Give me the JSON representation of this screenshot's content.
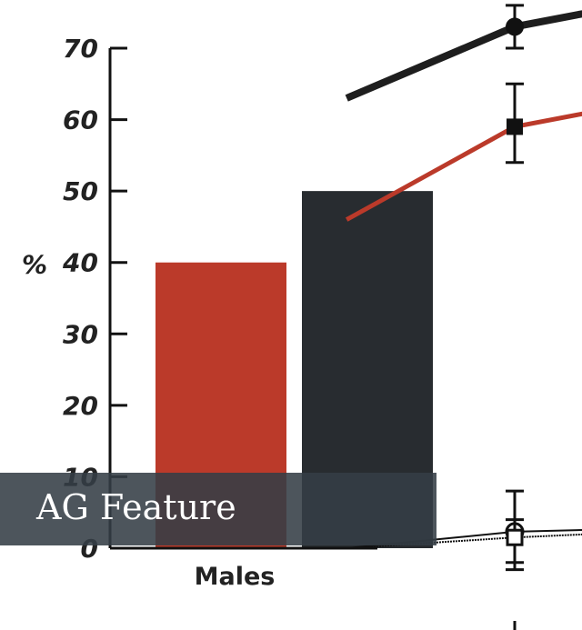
{
  "chart_data": {
    "type": "bar",
    "ylabel": "%",
    "ylim": [
      0,
      70
    ],
    "yticks": [
      0,
      10,
      20,
      30,
      40,
      50,
      60,
      70
    ],
    "categories": [
      "Males"
    ],
    "bars": [
      {
        "value": 40,
        "color": "#bb3a2a"
      },
      {
        "value": 50,
        "color": "#282c30"
      }
    ],
    "line_series": [
      {
        "color": "#1e1e1e",
        "marker": "circle",
        "points": [
          {
            "x": 0.4,
            "y": 63
          },
          {
            "x": 1,
            "y": 73
          },
          {
            "x": 1.4,
            "y": 76
          }
        ],
        "error": [
          {
            "x": 1,
            "low": 70,
            "high": 76
          }
        ]
      },
      {
        "color": "#bb3a2a",
        "marker": "square",
        "points": [
          {
            "x": 0.4,
            "y": 46
          },
          {
            "x": 1,
            "y": 59
          },
          {
            "x": 1.4,
            "y": 62
          }
        ],
        "error": [
          {
            "x": 1,
            "low": 54,
            "high": 65
          }
        ]
      },
      {
        "color": "#111111",
        "marker": "open-circle",
        "points": [
          {
            "x": 0.4,
            "y": 0
          },
          {
            "x": 1,
            "y": 2.3
          },
          {
            "x": 1.4,
            "y": 2.7
          }
        ],
        "error": [
          {
            "x": 1,
            "low": -3,
            "high": 8
          }
        ]
      },
      {
        "color": "#111111",
        "marker": "open-square",
        "points": [
          {
            "x": 0.4,
            "y": 0
          },
          {
            "x": 1,
            "y": 1.5
          },
          {
            "x": 1.4,
            "y": 2.2
          }
        ],
        "error": [
          {
            "x": 1,
            "low": -2,
            "high": 4
          }
        ]
      }
    ]
  },
  "banner": {
    "text": "AG Feature"
  }
}
